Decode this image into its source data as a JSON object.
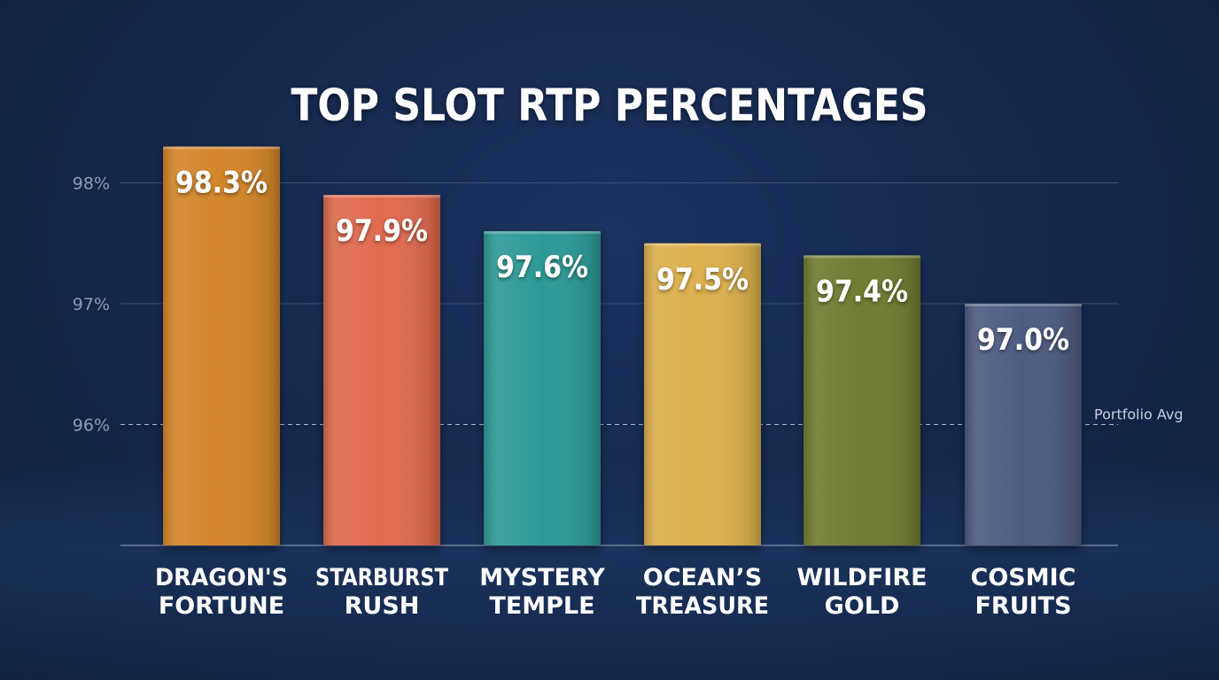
{
  "chart_data": {
    "type": "bar",
    "title": "TOP SLOT RTP PERCENTAGES",
    "categories": [
      [
        "DRAGON'S",
        "FORTUNE"
      ],
      [
        "STARBURST",
        "RUSH"
      ],
      [
        "MYSTERY",
        "TEMPLE"
      ],
      [
        "OCEAN’S",
        "TREASURE"
      ],
      [
        "WILDFIRE",
        "GOLD"
      ],
      [
        "COSMIC",
        "FRUITS"
      ]
    ],
    "values": [
      98.3,
      97.9,
      97.6,
      97.5,
      97.4,
      97.0
    ],
    "value_labels": [
      "98.3%",
      "97.9%",
      "97.6%",
      "97.5%",
      "97.4%",
      "97.0%"
    ],
    "colors": [
      "#d4862b",
      "#e06a4f",
      "#2f9a96",
      "#dcb04e",
      "#6f7d33",
      "#4d5b82"
    ],
    "yticks": [
      96,
      97,
      98
    ],
    "ytick_labels": [
      "96%",
      "97%",
      "98%"
    ],
    "ylim": [
      95.0,
      98.5
    ],
    "grid": true,
    "reference_line": {
      "value": 96,
      "label": "Portfolio Avg",
      "style": "dashed"
    },
    "xlabel": "",
    "ylabel": ""
  }
}
